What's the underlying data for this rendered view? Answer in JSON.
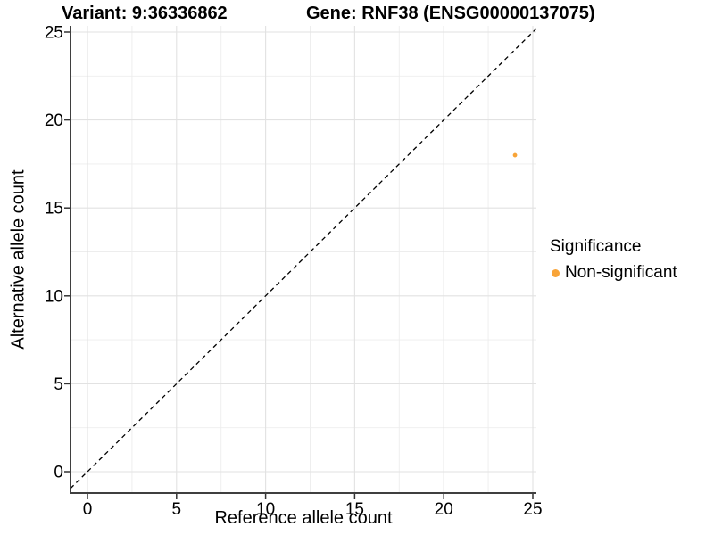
{
  "chart_data": {
    "type": "scatter",
    "title_left": "Variant: 9:36336862",
    "title_right": "Gene: RNF38 (ENSG00000137075)",
    "xlabel": "Reference allele count",
    "ylabel": "Alternative allele count",
    "xlim": [
      0,
      25
    ],
    "ylim": [
      0,
      25
    ],
    "xticks": [
      0,
      5,
      10,
      15,
      20,
      25
    ],
    "yticks": [
      0,
      5,
      10,
      15,
      20,
      25
    ],
    "grid": "major+minor",
    "points": [
      {
        "x": 24,
        "y": 18,
        "series": "Non-significant"
      }
    ],
    "abline": {
      "slope": 1,
      "intercept": 0,
      "style": "dashed",
      "color": "#000000"
    },
    "legend": {
      "position": "right",
      "title": "Significance",
      "entries": [
        {
          "label": "Non-significant",
          "color": "#F8A438"
        }
      ]
    }
  },
  "colors": {
    "background": "#FFFFFF",
    "grid_major": "#E2E2E2",
    "grid_minor": "#EDEDED",
    "axis_line": "#3F3F3F",
    "tick_mark": "#333333",
    "tick_text": "#000000",
    "point": "#F8A438"
  }
}
